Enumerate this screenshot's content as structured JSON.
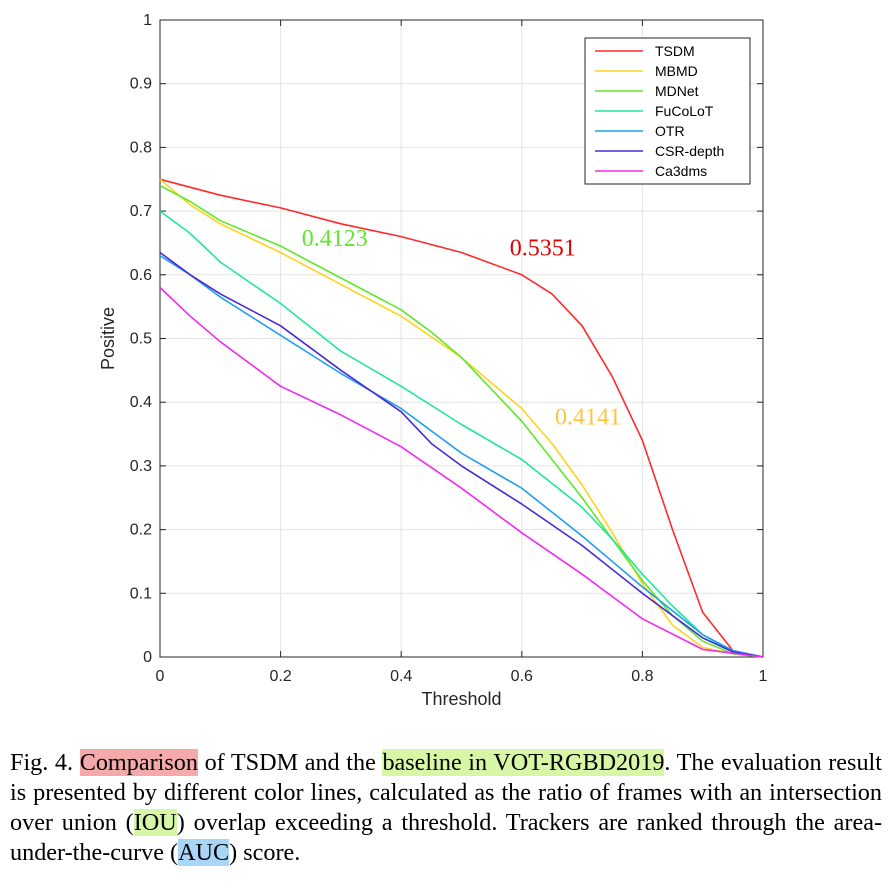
{
  "chart_data": {
    "type": "line",
    "xlabel": "Threshold",
    "ylabel": "Positive",
    "xlim": [
      0,
      1
    ],
    "ylim": [
      0,
      1
    ],
    "xticks": [
      "0",
      "0.2",
      "0.4",
      "0.6",
      "0.8",
      "1"
    ],
    "yticks": [
      "0",
      "0.1",
      "0.2",
      "0.3",
      "0.4",
      "0.5",
      "0.6",
      "0.7",
      "0.8",
      "0.9",
      "1"
    ],
    "grid": true,
    "legend_position": "top-right",
    "series": [
      {
        "name": "TSDM",
        "color": "#ff2a2a",
        "x": [
          0,
          0.1,
          0.2,
          0.3,
          0.4,
          0.5,
          0.6,
          0.65,
          0.7,
          0.75,
          0.8,
          0.85,
          0.9,
          0.95,
          1
        ],
        "y": [
          0.75,
          0.725,
          0.705,
          0.68,
          0.66,
          0.635,
          0.6,
          0.57,
          0.52,
          0.44,
          0.34,
          0.2,
          0.07,
          0.01,
          0
        ]
      },
      {
        "name": "MBMD",
        "color": "#ffd21f",
        "x": [
          0,
          0.05,
          0.1,
          0.2,
          0.3,
          0.4,
          0.5,
          0.6,
          0.65,
          0.7,
          0.75,
          0.8,
          0.85,
          0.9,
          0.95,
          1
        ],
        "y": [
          0.75,
          0.71,
          0.68,
          0.635,
          0.585,
          0.535,
          0.47,
          0.39,
          0.335,
          0.27,
          0.195,
          0.115,
          0.05,
          0.015,
          0.005,
          0
        ]
      },
      {
        "name": "MDNet",
        "color": "#5fe82a",
        "x": [
          0,
          0.05,
          0.1,
          0.2,
          0.3,
          0.4,
          0.45,
          0.5,
          0.6,
          0.65,
          0.7,
          0.75,
          0.8,
          0.85,
          0.9,
          0.95,
          1
        ],
        "y": [
          0.74,
          0.715,
          0.685,
          0.645,
          0.595,
          0.545,
          0.51,
          0.47,
          0.37,
          0.31,
          0.25,
          0.185,
          0.12,
          0.065,
          0.025,
          0.005,
          0
        ]
      },
      {
        "name": "FuCoLoT",
        "color": "#1fe89a",
        "x": [
          0,
          0.05,
          0.1,
          0.2,
          0.3,
          0.4,
          0.5,
          0.6,
          0.7,
          0.75,
          0.8,
          0.85,
          0.9,
          0.95,
          1
        ],
        "y": [
          0.7,
          0.665,
          0.62,
          0.555,
          0.48,
          0.425,
          0.365,
          0.31,
          0.235,
          0.185,
          0.13,
          0.08,
          0.035,
          0.008,
          0
        ]
      },
      {
        "name": "OTR",
        "color": "#1f9ff0",
        "x": [
          0,
          0.05,
          0.1,
          0.2,
          0.3,
          0.4,
          0.5,
          0.6,
          0.7,
          0.8,
          0.9,
          0.95,
          1
        ],
        "y": [
          0.63,
          0.6,
          0.565,
          0.505,
          0.445,
          0.39,
          0.32,
          0.265,
          0.19,
          0.11,
          0.035,
          0.01,
          0
        ]
      },
      {
        "name": "CSR-depth",
        "color": "#4a2ad6",
        "x": [
          0,
          0.05,
          0.1,
          0.2,
          0.3,
          0.4,
          0.45,
          0.5,
          0.6,
          0.7,
          0.8,
          0.9,
          0.95,
          1
        ],
        "y": [
          0.635,
          0.6,
          0.57,
          0.52,
          0.45,
          0.385,
          0.335,
          0.3,
          0.24,
          0.175,
          0.1,
          0.03,
          0.008,
          0
        ]
      },
      {
        "name": "Ca3dms",
        "color": "#f02af0",
        "x": [
          0,
          0.05,
          0.1,
          0.15,
          0.2,
          0.3,
          0.4,
          0.5,
          0.6,
          0.7,
          0.8,
          0.9,
          1
        ],
        "y": [
          0.58,
          0.535,
          0.495,
          0.46,
          0.425,
          0.38,
          0.33,
          0.265,
          0.195,
          0.13,
          0.06,
          0.012,
          0
        ]
      }
    ],
    "annotations": [
      {
        "text": "0.4123",
        "x": 0.235,
        "y": 0.645,
        "color": "#5fe82a"
      },
      {
        "text": "0.5351",
        "x": 0.58,
        "y": 0.63,
        "color": "#e00000"
      },
      {
        "text": "0.4141",
        "x": 0.655,
        "y": 0.365,
        "color": "#ffc440"
      }
    ]
  },
  "caption": {
    "prefix": "Fig. 4.",
    "h1": "Comparison",
    "t1": " of TSDM and the ",
    "h2": "baseline in VOT-RGBD2019",
    "t2": ". The evaluation result is presented by different color lines, calculated as the ratio of frames with an intersection over union (",
    "h3": "IOU",
    "t3": ") overlap exceeding a threshold. Trackers are ranked through the area-under-the-curve (",
    "h4": "AUC",
    "t4": ") score."
  }
}
